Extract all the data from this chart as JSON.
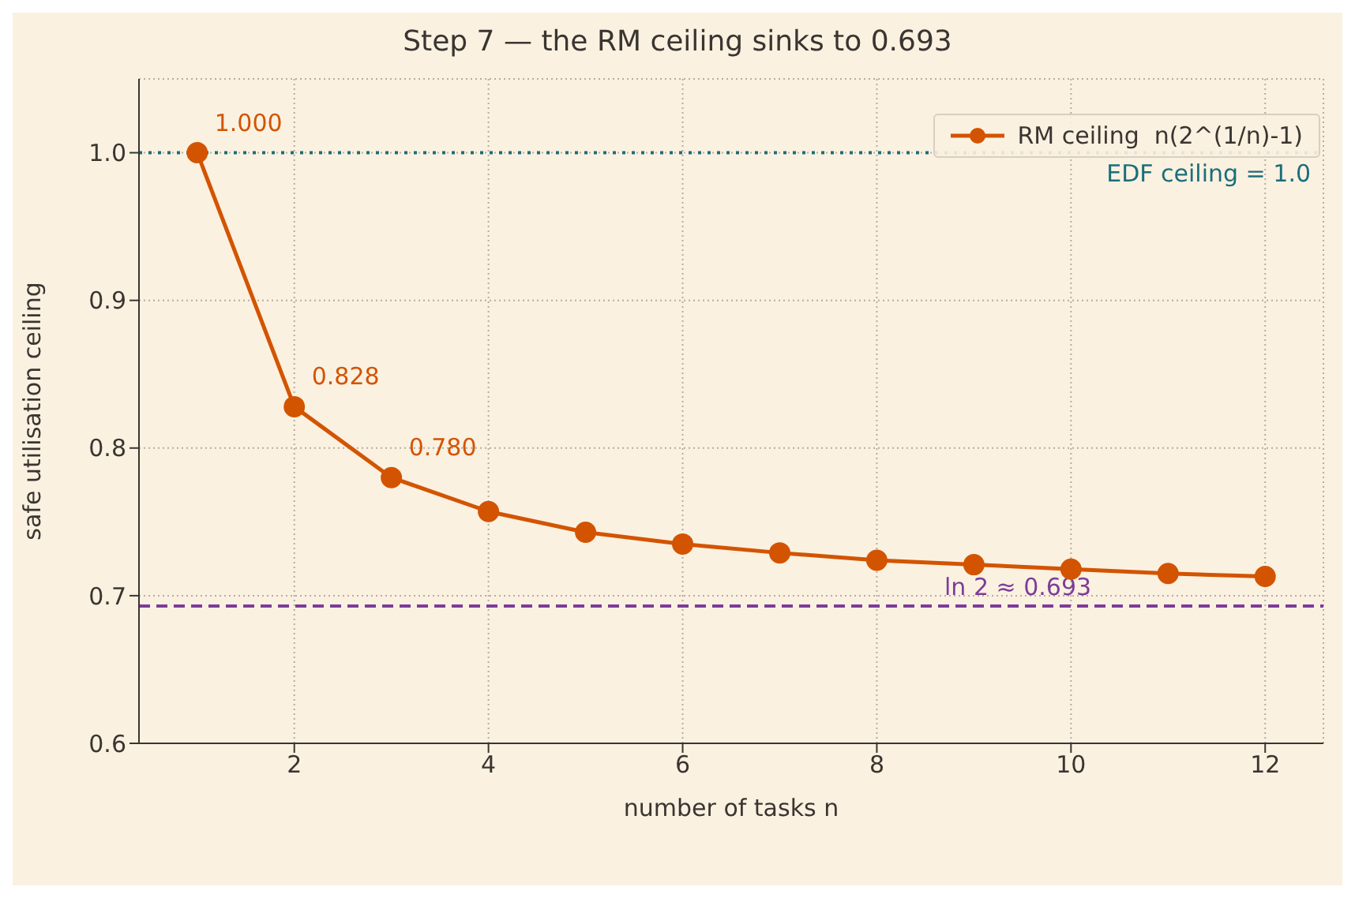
{
  "chart_data": {
    "type": "line",
    "title": "Step 7 — the RM ceiling sinks to 0.693",
    "xlabel": "number of tasks  n",
    "ylabel": "safe utilisation ceiling",
    "x": [
      1,
      2,
      3,
      4,
      5,
      6,
      7,
      8,
      9,
      10,
      11,
      12
    ],
    "series": [
      {
        "name": "RM ceiling  n(2^(1/n)-1)",
        "color": "#d35400",
        "values": [
          1.0,
          0.828,
          0.78,
          0.757,
          0.743,
          0.735,
          0.729,
          0.724,
          0.721,
          0.718,
          0.715,
          0.713
        ],
        "value_labels": [
          "1.000",
          "0.828",
          "0.780",
          null,
          null,
          null,
          null,
          null,
          null,
          null,
          null,
          null
        ]
      }
    ],
    "xlim": [
      0.4,
      12.6
    ],
    "xticks": [
      2,
      4,
      6,
      8,
      10,
      12
    ],
    "ylim": [
      0.6,
      1.05
    ],
    "yticks": [
      0.6,
      0.7,
      0.8,
      0.9,
      {
        "value": 1,
        "label": "1.0"
      }
    ],
    "ref_lines": [
      {
        "axis": "y",
        "value": 1.0,
        "label": "EDF ceiling = 1.0",
        "color": "#1a6e7a",
        "line_style": "dotted"
      },
      {
        "axis": "y",
        "value": 0.693,
        "label": "ln 2 ≈ 0.693",
        "color": "#7d3c98",
        "line_style": "dashed"
      }
    ],
    "grid": true,
    "legend": "top right",
    "marker": "circle",
    "line_style": "solid"
  }
}
